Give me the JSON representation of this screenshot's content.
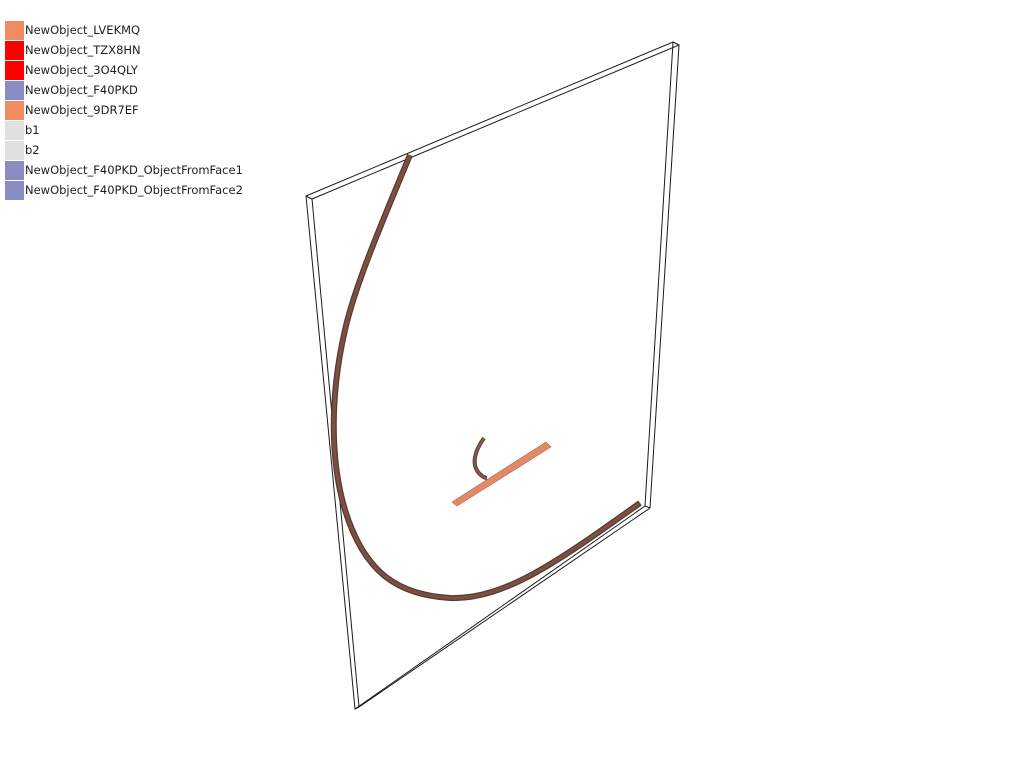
{
  "legend": {
    "items": [
      {
        "label": "NewObject_LVEKMQ",
        "color": "#f08c64"
      },
      {
        "label": "NewObject_TZX8HN",
        "color": "#ff0000"
      },
      {
        "label": "NewObject_3O4QLY",
        "color": "#ff0000"
      },
      {
        "label": "NewObject_F40PKD",
        "color": "#8a8cc4"
      },
      {
        "label": "NewObject_9DR7EF",
        "color": "#f08c64"
      },
      {
        "label": "b1",
        "color": "#e0e0e0"
      },
      {
        "label": "b2",
        "color": "#e0e0e0"
      },
      {
        "label": "NewObject_F40PKD_ObjectFromFace1",
        "color": "#8a8cc4"
      },
      {
        "label": "NewObject_F40PKD_ObjectFromFace2",
        "color": "#8a8cc4"
      }
    ]
  },
  "scene": {
    "background": "#ffffff",
    "frame_edge_color": "#1a1a1a",
    "curve_color": "#7a5044",
    "strip_color": "#e08a6a"
  }
}
